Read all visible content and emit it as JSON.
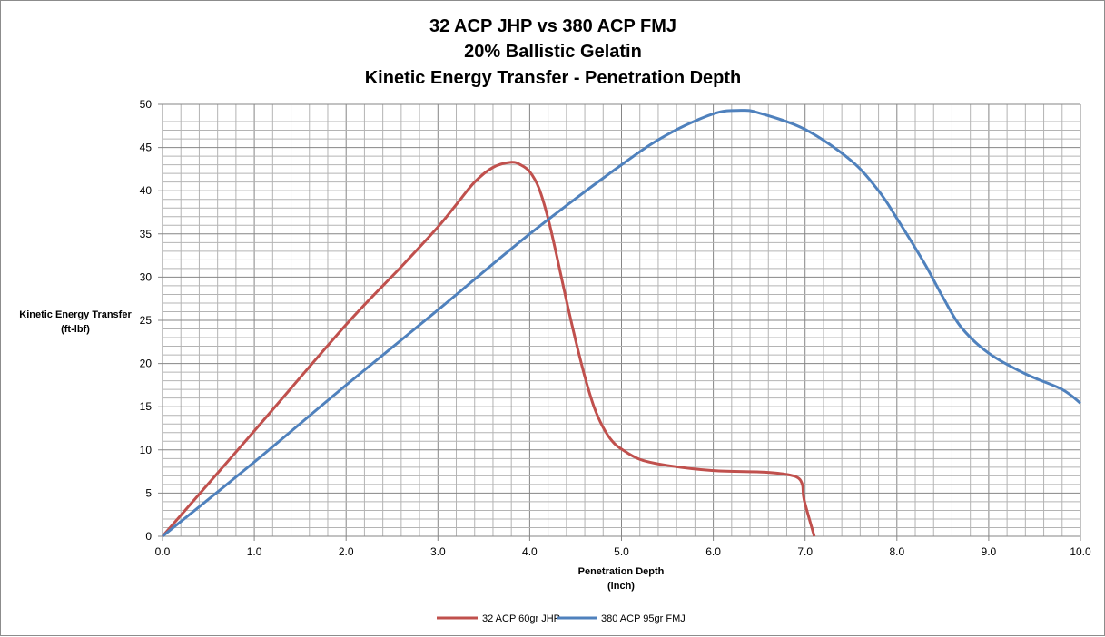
{
  "chart_data": {
    "type": "line",
    "title": [
      "32 ACP JHP vs 380 ACP FMJ",
      "20% Ballistic Gelatin",
      "Kinetic Energy Transfer - Penetration Depth"
    ],
    "xlabel": [
      "Penetration Depth",
      "(inch)"
    ],
    "ylabel": [
      "Kinetic Energy Transfer",
      "(ft-lbf)"
    ],
    "xlim": [
      0,
      10
    ],
    "ylim": [
      0,
      50
    ],
    "xticks": [
      "0.0",
      "1.0",
      "2.0",
      "3.0",
      "4.0",
      "5.0",
      "6.0",
      "7.0",
      "8.0",
      "9.0",
      "10.0"
    ],
    "yticks": [
      "0",
      "5",
      "10",
      "15",
      "20",
      "25",
      "30",
      "35",
      "40",
      "45",
      "50"
    ],
    "grid": {
      "major_x": 1,
      "minor_x": 0.2,
      "major_y": 5,
      "minor_y": 1
    },
    "legend_position": "bottom",
    "series": [
      {
        "name": "32 ACP 60gr JHP",
        "color": "#C0504D",
        "points": [
          [
            0,
            0
          ],
          [
            1.0,
            12.2
          ],
          [
            2.0,
            24.5
          ],
          [
            2.6,
            31.2
          ],
          [
            3.0,
            35.8
          ],
          [
            3.2,
            38.4
          ],
          [
            3.4,
            41.0
          ],
          [
            3.6,
            42.7
          ],
          [
            3.8,
            43.3
          ],
          [
            3.9,
            43.0
          ],
          [
            4.0,
            42.2
          ],
          [
            4.1,
            40.3
          ],
          [
            4.2,
            36.8
          ],
          [
            4.3,
            32.2
          ],
          [
            4.4,
            27.3
          ],
          [
            4.5,
            22.7
          ],
          [
            4.6,
            18.5
          ],
          [
            4.7,
            15.0
          ],
          [
            4.8,
            12.6
          ],
          [
            4.9,
            11.0
          ],
          [
            5.0,
            10.1
          ],
          [
            5.2,
            8.9
          ],
          [
            5.5,
            8.2
          ],
          [
            6.0,
            7.6
          ],
          [
            6.5,
            7.45
          ],
          [
            6.7,
            7.3
          ],
          [
            6.9,
            6.9
          ],
          [
            6.97,
            6.0
          ],
          [
            6.99,
            4.2
          ],
          [
            7.1,
            0
          ]
        ]
      },
      {
        "name": "380 ACP 95gr FMJ",
        "color": "#4F81BD",
        "points": [
          [
            0,
            0
          ],
          [
            1.0,
            8.6
          ],
          [
            2.0,
            17.5
          ],
          [
            3.0,
            26.2
          ],
          [
            4.0,
            35.0
          ],
          [
            5.0,
            43.0
          ],
          [
            5.5,
            46.5
          ],
          [
            6.0,
            48.9
          ],
          [
            6.3,
            49.3
          ],
          [
            6.5,
            49.0
          ],
          [
            7.0,
            47.1
          ],
          [
            7.5,
            43.5
          ],
          [
            7.8,
            40.0
          ],
          [
            8.0,
            36.8
          ],
          [
            8.3,
            31.6
          ],
          [
            8.5,
            27.7
          ],
          [
            8.7,
            24.2
          ],
          [
            9.0,
            21.2
          ],
          [
            9.4,
            18.8
          ],
          [
            9.8,
            17.0
          ],
          [
            10.0,
            15.4
          ]
        ]
      }
    ]
  }
}
